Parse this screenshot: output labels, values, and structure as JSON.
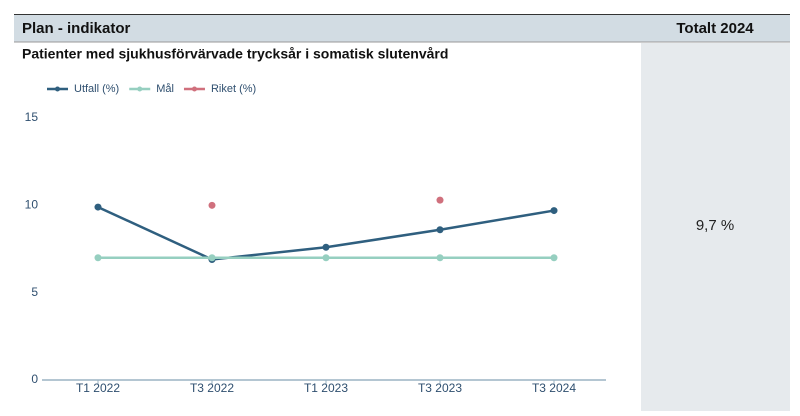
{
  "header": {
    "indicator": "Plan - indikator",
    "total": "Totalt 2024"
  },
  "row": {
    "total": "9,7 %"
  },
  "chart_data": {
    "type": "line",
    "title": "Patienter med sjukhusförvärvade trycksår i somatisk slutenvård",
    "categories": [
      "T1 2022",
      "T3 2022",
      "T1 2023",
      "T3 2023",
      "T3 2024"
    ],
    "series": [
      {
        "name": "Utfall (%)",
        "color": "#2f5f7f",
        "values": [
          9.9,
          6.9,
          7.6,
          8.6,
          9.7
        ]
      },
      {
        "name": "Mål",
        "color": "#96cfc0",
        "values": [
          7,
          7,
          7,
          7,
          7
        ]
      },
      {
        "name": "Riket (%)",
        "color": "#d0707d",
        "values": [
          null,
          10,
          null,
          10.3,
          null
        ]
      }
    ],
    "ylim": [
      0,
      15
    ],
    "yticks": [
      0,
      5,
      10,
      15
    ],
    "grid": false
  }
}
